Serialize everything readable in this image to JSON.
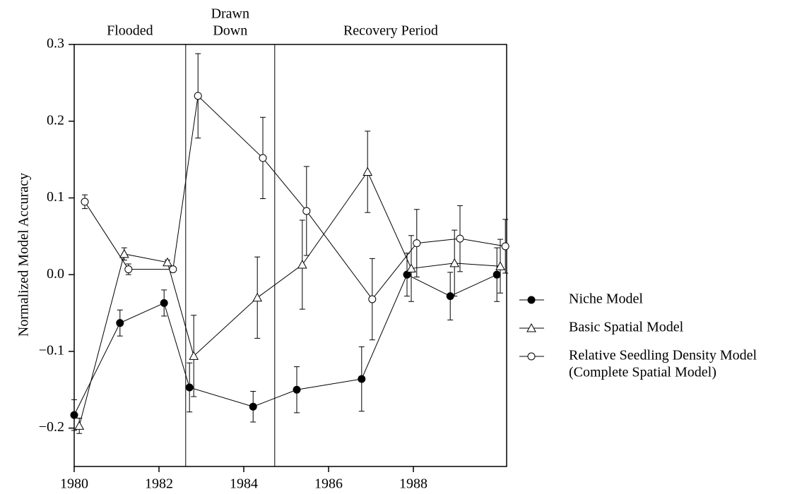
{
  "chart_data": {
    "type": "line",
    "ylabel": "Normalized Model Accuracy",
    "xlim": [
      1980,
      1990.2
    ],
    "ylim": [
      -0.25,
      0.3
    ],
    "xticks": [
      1980,
      1982,
      1984,
      1986,
      1988
    ],
    "yticks": [
      {
        "value": -0.2,
        "label": "−0.2"
      },
      {
        "value": -0.1,
        "label": "−0.1"
      },
      {
        "value": 0,
        "label": "0.0"
      },
      0.1,
      0.2,
      0.3
    ],
    "dividers": [
      1982.63,
      1984.73
    ],
    "regions": [
      {
        "label": [
          "Flooded"
        ]
      },
      {
        "label": [
          "Drawn",
          "Down"
        ]
      },
      {
        "label": [
          "Recovery Period"
        ]
      }
    ],
    "series": [
      {
        "name": [
          "Niche Model"
        ],
        "color": "#000000",
        "marker": "filled-circle",
        "x": [
          1980,
          1981.08,
          1982.12,
          1982.72,
          1984.22,
          1985.25,
          1986.78,
          1987.85,
          1988.87,
          1989.97
        ],
        "values": [
          -0.183,
          -0.063,
          -0.037,
          -0.147,
          -0.172,
          -0.15,
          -0.136,
          0.0,
          -0.028,
          0.0
        ],
        "errors": [
          0.02,
          0.017,
          0.017,
          0.032,
          0.02,
          0.03,
          0.042,
          0.028,
          0.031,
          0.035
        ]
      },
      {
        "name": [
          "Basic Spatial Model"
        ],
        "color": "#000000",
        "marker": "open-triangle",
        "x": [
          1980.12,
          1981.18,
          1982.2,
          1982.82,
          1984.32,
          1985.38,
          1986.92,
          1987.95,
          1988.97,
          1990.05
        ],
        "values": [
          -0.197,
          0.027,
          0.016,
          -0.106,
          -0.03,
          0.013,
          0.134,
          0.008,
          0.015,
          0.011
        ],
        "errors": [
          0.01,
          0.008,
          0.003,
          0.053,
          0.053,
          0.058,
          0.053,
          0.043,
          0.043,
          0.035
        ]
      },
      {
        "name": [
          "Relative Seedling Density Model",
          "(Complete Spatial Model)"
        ],
        "color": "#000000",
        "marker": "open-circle",
        "x": [
          1980.25,
          1981.28,
          1982.33,
          1982.92,
          1984.45,
          1985.48,
          1987.03,
          1988.08,
          1989.1,
          1990.17
        ],
        "values": [
          0.095,
          0.007,
          0.007,
          0.233,
          0.152,
          0.083,
          -0.032,
          0.041,
          0.047,
          0.037
        ],
        "errors": [
          0.009,
          0.007,
          0.0,
          0.055,
          0.053,
          0.058,
          0.053,
          0.044,
          0.043,
          0.035
        ]
      }
    ]
  }
}
